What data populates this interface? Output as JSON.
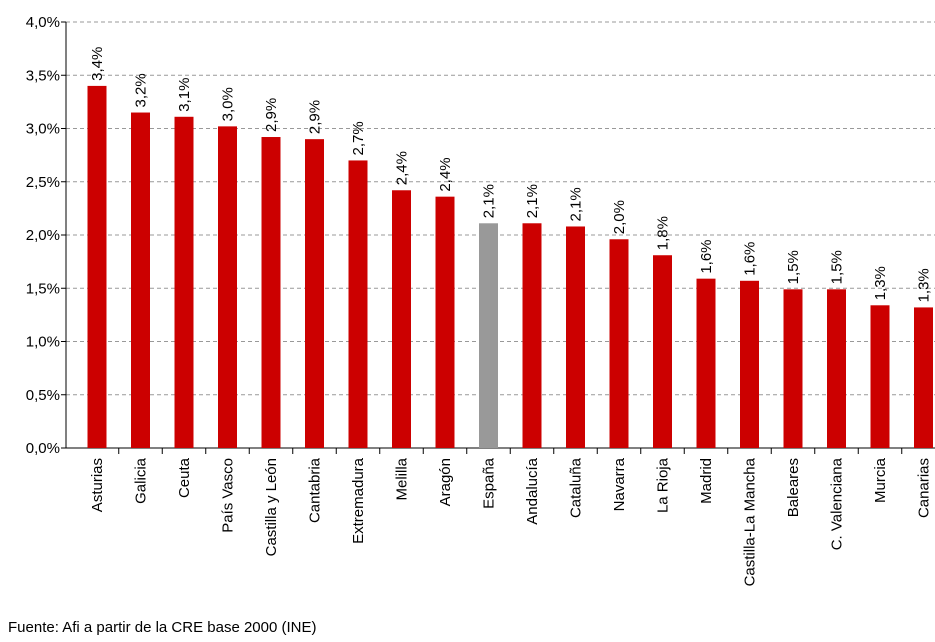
{
  "chart_data": {
    "type": "bar",
    "categories": [
      "Asturias",
      "Galicia",
      "Ceuta",
      "País Vasco",
      "Castilla y León",
      "Cantabria",
      "Extremadura",
      "Melilla",
      "Aragón",
      "España",
      "Andalucía",
      "Cataluña",
      "Navarra",
      "La Rioja",
      "Madrid",
      "Castilla-La Mancha",
      "Baleares",
      "C. Valenciana",
      "Murcia",
      "Canarias"
    ],
    "values": [
      3.4,
      3.15,
      3.11,
      3.02,
      2.92,
      2.9,
      2.7,
      2.42,
      2.36,
      2.11,
      2.11,
      2.08,
      1.96,
      1.81,
      1.59,
      1.57,
      1.49,
      1.49,
      1.34,
      1.32
    ],
    "value_labels": [
      "3,4%",
      "3,2%",
      "3,1%",
      "3,0%",
      "2,9%",
      "2,9%",
      "2,7%",
      "2,4%",
      "2,4%",
      "2,1%",
      "2,1%",
      "2,1%",
      "2,0%",
      "1,8%",
      "1,6%",
      "1,6%",
      "1,5%",
      "1,5%",
      "1,3%",
      "1,3%"
    ],
    "colors": [
      "#cc0000",
      "#cc0000",
      "#cc0000",
      "#cc0000",
      "#cc0000",
      "#cc0000",
      "#cc0000",
      "#cc0000",
      "#cc0000",
      "#999999",
      "#cc0000",
      "#cc0000",
      "#cc0000",
      "#cc0000",
      "#cc0000",
      "#cc0000",
      "#cc0000",
      "#cc0000",
      "#cc0000",
      "#cc0000"
    ],
    "ylim": [
      0,
      4
    ],
    "yticks": [
      {
        "value": 0,
        "label": "0,0%"
      },
      {
        "value": 0.5,
        "label": "0,5%"
      },
      {
        "value": 1,
        "label": "1,0%"
      },
      {
        "value": 1.5,
        "label": "1,5%"
      },
      {
        "value": 2,
        "label": "2,0%"
      },
      {
        "value": 2.5,
        "label": "2,5%"
      },
      {
        "value": 3,
        "label": "3,0%"
      },
      {
        "value": 3.5,
        "label": "3,5%"
      },
      {
        "value": 4,
        "label": "4,0%"
      }
    ],
    "grid": true,
    "source": "Fuente: Afi a partir de la CRE base 2000 (INE)"
  }
}
